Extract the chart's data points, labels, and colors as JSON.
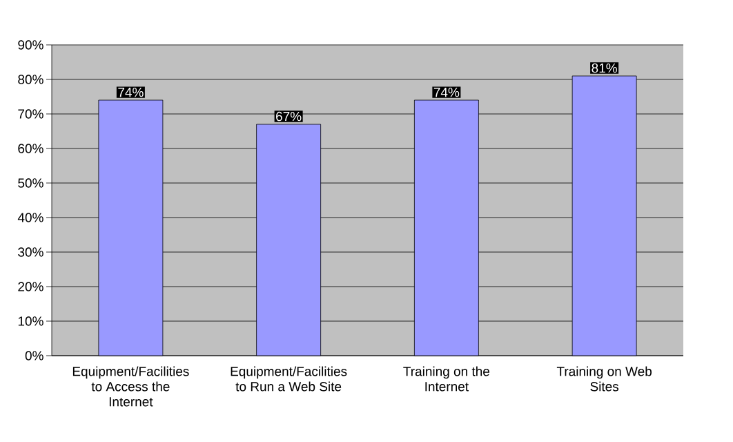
{
  "chart_data": {
    "type": "bar",
    "categories": [
      "Equipment/Facilities to Access the Internet",
      "Equipment/Facilities to Run a Web Site",
      "Training on the Internet",
      "Training on Web Sites"
    ],
    "values": [
      74,
      67,
      74,
      81
    ],
    "value_labels": [
      "74%",
      "67%",
      "74%",
      "81%"
    ],
    "color": "#9999ff",
    "ylim": [
      0,
      90
    ],
    "yticks": [
      {
        "value": 0,
        "label": "0%"
      },
      {
        "value": 10,
        "label": "10%"
      },
      {
        "value": 20,
        "label": "20%"
      },
      {
        "value": 30,
        "label": "30%"
      },
      {
        "value": 40,
        "label": "40%"
      },
      {
        "value": 50,
        "label": "50%"
      },
      {
        "value": 60,
        "label": "60%"
      },
      {
        "value": 70,
        "label": "70%"
      },
      {
        "value": 80,
        "label": "80%"
      },
      {
        "value": 90,
        "label": "90%"
      }
    ],
    "grid": "y"
  }
}
